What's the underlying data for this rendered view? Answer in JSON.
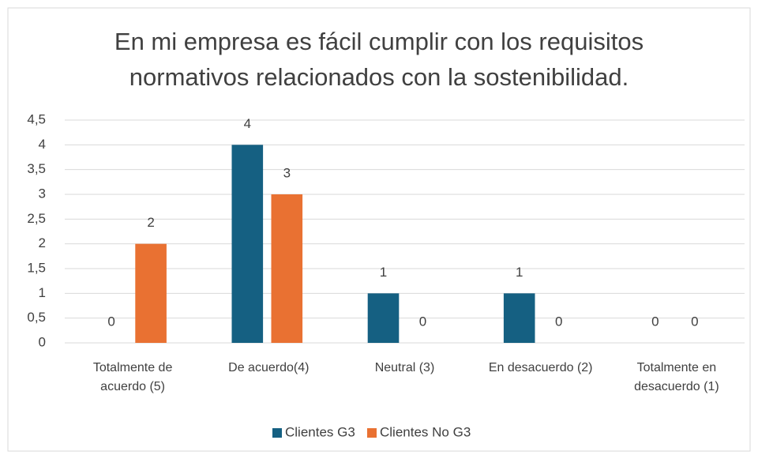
{
  "chart_data": {
    "type": "bar",
    "title": "En mi empresa es fácil cumplir con los requisitos normativos relacionados con la sostenibilidad.",
    "categories": [
      "Totalmente de acuerdo (5)",
      "De acuerdo(4)",
      "Neutral (3)",
      "En desacuerdo (2)",
      "Totalmente en desacuerdo (1)"
    ],
    "series": [
      {
        "name": "Clientes G3",
        "color": "#156082",
        "values": [
          0,
          4,
          1,
          1,
          0
        ]
      },
      {
        "name": "Clientes No G3",
        "color": "#e97132",
        "values": [
          2,
          3,
          0,
          0,
          0
        ]
      }
    ],
    "ylim": [
      0,
      4.5
    ],
    "yticks": [
      0,
      {
        "value": 0.5,
        "label": "0,5"
      },
      1,
      {
        "value": 1.5,
        "label": "1,5"
      },
      2,
      {
        "value": 2.5,
        "label": "2,5"
      },
      3,
      {
        "value": 3.5,
        "label": "3,5"
      },
      4,
      {
        "value": 4.5,
        "label": "4,5"
      }
    ],
    "grid": true,
    "legend": "bottom"
  }
}
